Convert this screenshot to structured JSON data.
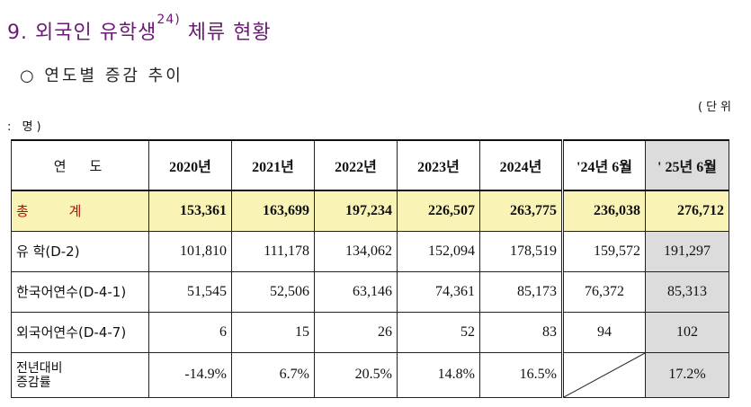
{
  "title": {
    "prefix": "9. 외국인 유학생",
    "note": "24)",
    "suffix": " 체류 현황"
  },
  "subtitle": "○ 연도별 증감 추이",
  "unit": {
    "right": "(단위",
    "left": ": 명)"
  },
  "table": {
    "header_label": "연도",
    "years": [
      "2020년",
      "2021년",
      "2022년",
      "2023년",
      "2024년",
      "'24년 6월",
      "' 25년 6월"
    ],
    "rows": [
      {
        "label": "총 계",
        "values": [
          "153,361",
          "163,699",
          "197,234",
          "226,507",
          "263,775",
          "236,038",
          "276,712"
        ]
      },
      {
        "label": "유    학(D-2)",
        "values": [
          "101,810",
          "111,178",
          "134,062",
          "152,094",
          "178,519",
          "159,572",
          "191,297"
        ]
      },
      {
        "label": "한국어연수(D-4-1)",
        "values": [
          "51,545",
          "52,506",
          "63,146",
          "74,361",
          "85,173",
          "76,372",
          "85,313"
        ]
      },
      {
        "label": "외국어연수(D-4-7)",
        "values": [
          "6",
          "15",
          "26",
          "52",
          "83",
          "94",
          "102"
        ]
      }
    ],
    "change_row": {
      "label_line1": "전년대비",
      "label_line2": "증감률",
      "values": [
        "-14.9%",
        "6.7%",
        "20.5%",
        "14.8%",
        "16.5%",
        "",
        "17.2%"
      ]
    }
  }
}
